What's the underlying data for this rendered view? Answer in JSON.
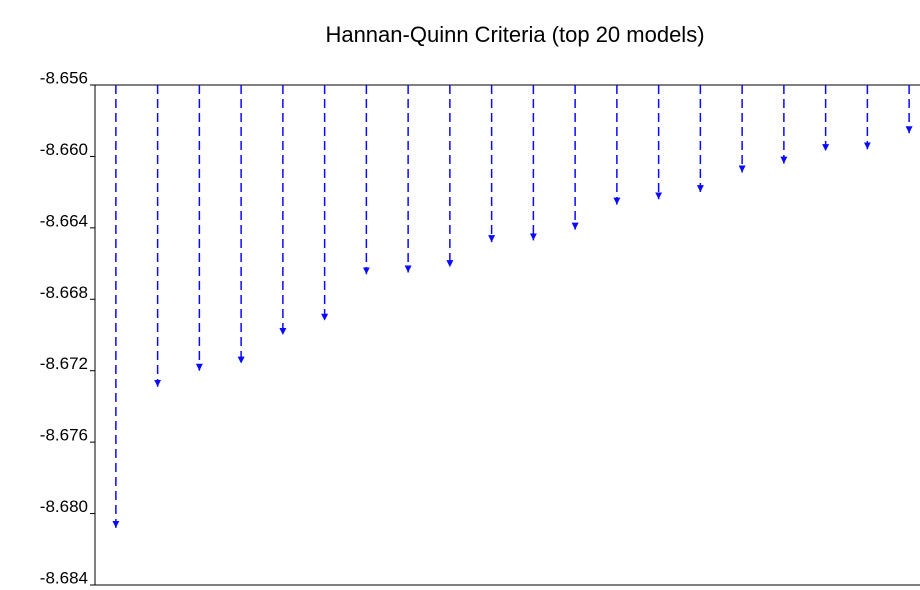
{
  "chart_data": {
    "type": "arrow",
    "title": "Hannan-Quinn Criteria (top 20 models)",
    "color": "#0a0aff",
    "values": [
      -8.6808,
      -8.6729,
      -8.672,
      -8.6716,
      -8.67,
      -8.6692,
      -8.6666,
      -8.6665,
      -8.6662,
      -8.6648,
      -8.6647,
      -8.6641,
      -8.6627,
      -8.6624,
      -8.662,
      -8.6609,
      -8.6604,
      -8.6597,
      -8.6596,
      -8.6587
    ],
    "categories": [
      null,
      null,
      null,
      null,
      null,
      null,
      null,
      null,
      null,
      null,
      null,
      null,
      null,
      null,
      null,
      null,
      null,
      null,
      null,
      null
    ],
    "ylim": [
      -8.684,
      -8.656
    ],
    "yticks": [
      {
        "value": -8.684,
        "label": "-8.684"
      },
      {
        "value": -8.68,
        "label": "-8.680"
      },
      {
        "value": -8.676,
        "label": "-8.676"
      },
      {
        "value": -8.672,
        "label": "-8.672"
      },
      {
        "value": -8.668,
        "label": "-8.668"
      },
      {
        "value": -8.664,
        "label": "-8.664"
      },
      {
        "value": -8.66,
        "label": "-8.660"
      },
      {
        "value": -8.656,
        "label": "-8.656"
      }
    ]
  }
}
